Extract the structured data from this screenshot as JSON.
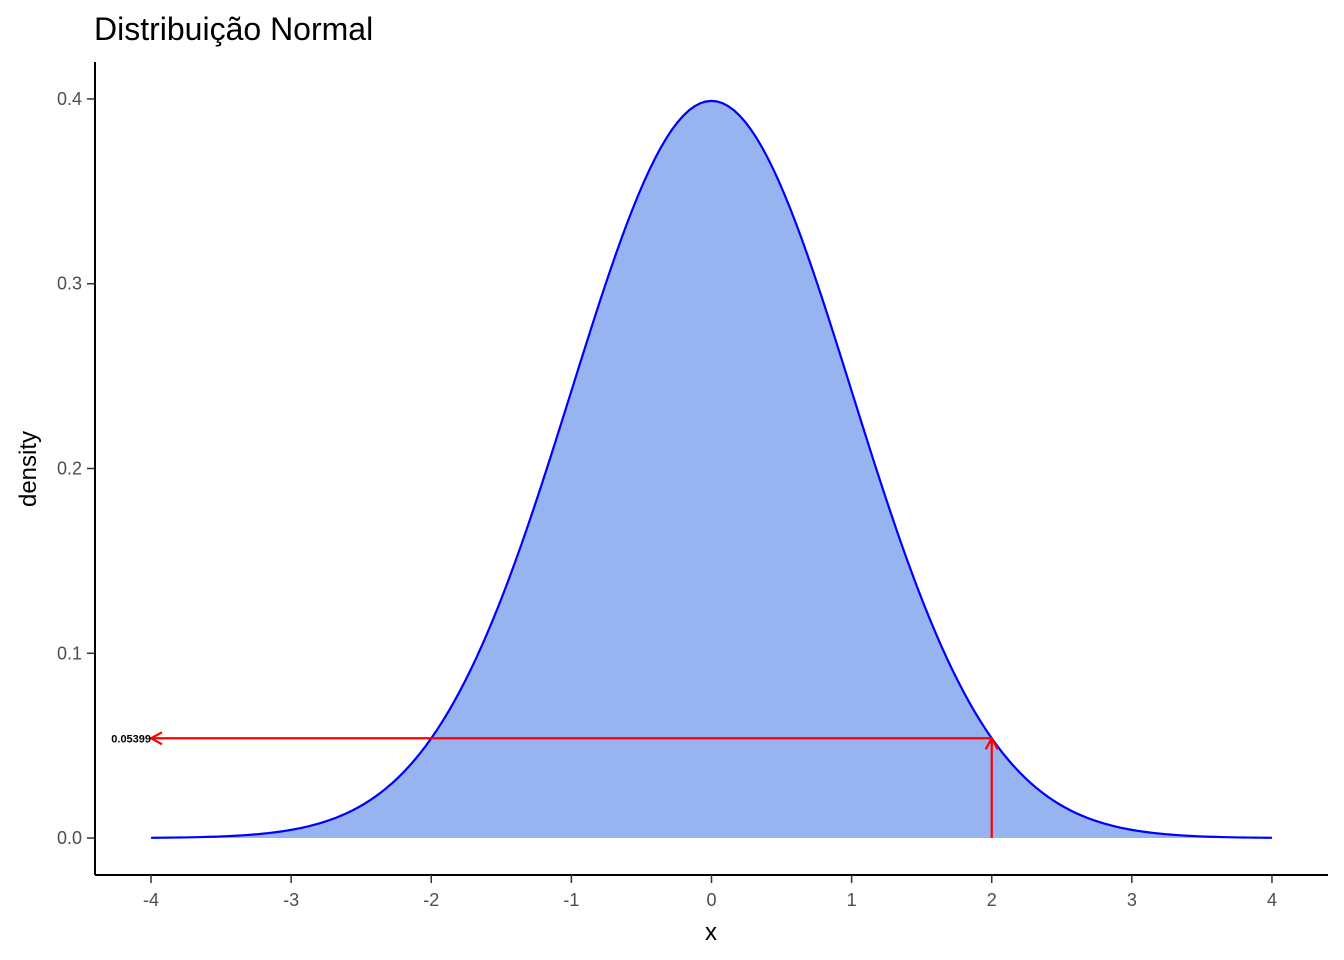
{
  "chart_data": {
    "type": "area",
    "title": "Distribuição Normal",
    "xlabel": "x",
    "ylabel": "density",
    "xlim": [
      -4.4,
      4.4
    ],
    "ylim": [
      -0.02,
      0.42
    ],
    "x_ticks": [
      -4,
      -3,
      -2,
      -1,
      0,
      1,
      2,
      3,
      4
    ],
    "x_tick_labels": [
      "-4",
      "-3",
      "-2",
      "-1",
      "0",
      "1",
      "2",
      "3",
      "4"
    ],
    "y_ticks": [
      0.0,
      0.1,
      0.2,
      0.3,
      0.4
    ],
    "y_tick_labels": [
      "0.0",
      "0.1",
      "0.2",
      "0.3",
      "0.4"
    ],
    "grid": false,
    "legend": "none",
    "series": [
      {
        "distribution": "normal",
        "mean": 0,
        "sd": 1,
        "x_range": [
          -4,
          4
        ],
        "line_color": "#0000ff",
        "fill_color": "#97b3f0"
      }
    ],
    "annotation": {
      "x": 2,
      "y": 0.05399,
      "label": "0.05399",
      "arrow_color": "#ff0000"
    }
  }
}
